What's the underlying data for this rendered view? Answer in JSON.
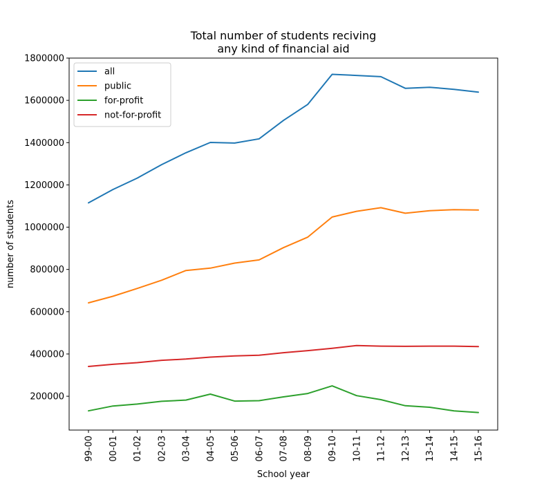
{
  "chart_data": {
    "type": "line",
    "title_lines": [
      "Total number of students reciving",
      "any kind of financial aid"
    ],
    "xlabel": "School year",
    "ylabel": "number of students",
    "ylim": [
      40000,
      1800000
    ],
    "yticks": [
      200000,
      400000,
      600000,
      800000,
      1000000,
      1200000,
      1400000,
      1600000,
      1800000
    ],
    "ytick_labels": [
      "200000",
      "400000",
      "600000",
      "800000",
      "1000000",
      "1200000",
      "1400000",
      "1600000",
      "1800000"
    ],
    "categories": [
      "99-00",
      "00-01",
      "01-02",
      "02-03",
      "03-04",
      "04-05",
      "05-06",
      "06-07",
      "07-08",
      "08-09",
      "09-10",
      "10-11",
      "11-12",
      "12-13",
      "13-14",
      "14-15",
      "15-16"
    ],
    "grid": false,
    "legend_position": "top-left",
    "series": [
      {
        "name": "all",
        "color": "#1f77b4",
        "values": [
          1115000,
          1178000,
          1232000,
          1296000,
          1352000,
          1401000,
          1398000,
          1418000,
          1505000,
          1581000,
          1723000,
          1718000,
          1712000,
          1657000,
          1662000,
          1652000,
          1639000
        ]
      },
      {
        "name": "public",
        "color": "#ff7f0e",
        "values": [
          642000,
          673000,
          710000,
          749000,
          795000,
          806000,
          830000,
          845000,
          903000,
          953000,
          1048000,
          1075000,
          1092000,
          1066000,
          1078000,
          1083000,
          1081000
        ]
      },
      {
        "name": "for-profit",
        "color": "#2ca02c",
        "values": [
          131000,
          154000,
          163000,
          176000,
          182000,
          210000,
          177000,
          179000,
          197000,
          213000,
          249000,
          203000,
          184000,
          155000,
          148000,
          131000,
          123000
        ]
      },
      {
        "name": "not-for-profit",
        "color": "#d62728",
        "values": [
          341000,
          351000,
          359000,
          370000,
          376000,
          385000,
          391000,
          394000,
          406000,
          416000,
          427000,
          440000,
          437000,
          436000,
          437000,
          437000,
          435000
        ]
      }
    ]
  }
}
